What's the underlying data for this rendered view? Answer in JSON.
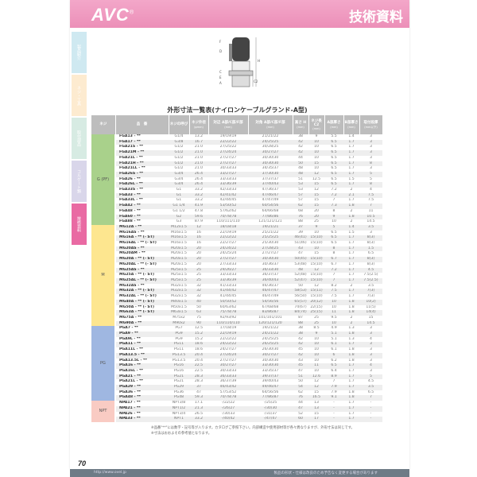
{
  "header": {
    "logo": "AVC",
    "registered": "®",
    "title": "技術資料"
  },
  "side_tabs": [
    {
      "label": "製品紹介",
      "color": "#cfe9f1"
    },
    {
      "label": "ネジ・工具",
      "color": "#fdebd0"
    },
    {
      "label": "取付部品",
      "color": "#d7ebe3"
    },
    {
      "label": "コルゲート類",
      "color": "#d9d6ea"
    },
    {
      "label": "技術資料",
      "color": "#e96aa3"
    }
  ],
  "diagram": {
    "labels": [
      "F",
      "D",
      "C",
      "E",
      "A",
      "H",
      "C2"
    ]
  },
  "table": {
    "title": "外形寸法一覧表(ナイロンケーブルグランド-A型)",
    "headers": [
      {
        "main": "ネジ",
        "unit": ""
      },
      {
        "main": "品　番",
        "unit": ""
      },
      {
        "main": "ネジの呼び",
        "unit": ""
      },
      {
        "main": "ネジ外径",
        "unit": "(φmm)"
      },
      {
        "main": "対辺 A部/C部/F部",
        "unit": "(mm)"
      },
      {
        "main": "対角 A部/C部/F部",
        "unit": "(mm)"
      },
      {
        "main": "高さ H",
        "unit": "(mm)"
      },
      {
        "main": "ネジ長 C2",
        "unit": "(mm)"
      },
      {
        "main": "A部厚さ",
        "unit": "(mm)"
      },
      {
        "main": "B部厚さ",
        "unit": "(mm)"
      },
      {
        "main": "取付段厚",
        "unit": "(mm以下)"
      }
    ],
    "groups": [
      {
        "label": "G (PF)",
        "color": "#a9d18b",
        "rows": [
          [
            "FGA13 - **",
            "G1/4",
            "13.2",
            "19/19/19",
            "21/21/22",
            "38",
            "9",
            "5.5",
            "1.4",
            "3"
          ],
          [
            "FGA17 - **",
            "G3/8",
            "16.7",
            "22/22/22",
            "24/25/25",
            "42",
            "10",
            "6.5",
            "1.7",
            "3"
          ],
          [
            "FGA21S - **",
            "G1/2",
            "21.0",
            "27/25/22",
            "30/28/25",
            "42",
            "10",
            "6.5",
            "1.7",
            "3"
          ],
          [
            "FGA21M - **",
            "G1/2",
            "21.0",
            "27/24/24",
            "30/27/27",
            "42",
            "10",
            "6.5",
            "1.7",
            "3"
          ],
          [
            "FGA21L - **",
            "G1/2",
            "21.0",
            "27/27/27",
            "30/30/30",
            "44",
            "10",
            "6.5",
            "1.7",
            "3"
          ],
          [
            "FGA21H - **",
            "G1/2",
            "21.0",
            "27/27/27",
            "30/30/30",
            "50",
            "15",
            "6.5",
            "1.7",
            "8"
          ],
          [
            "FGA21LL - **",
            "G1/2",
            "21.0",
            "30/33/33",
            "34/35/37",
            "48",
            "10",
            "6.5",
            "1.7",
            "3"
          ],
          [
            "FGA26S - **",
            "G3/4",
            "26.4",
            "33/27/27",
            "37/30/30",
            "48",
            "12",
            "6.5",
            "1.7",
            "5"
          ],
          [
            "FGA26 - **",
            "G3/4",
            "26.4",
            "33/33/33",
            "37/37/37",
            "51",
            "12.5",
            "6.5",
            "1.5",
            "5"
          ],
          [
            "FGA26L - **",
            "G3/4",
            "26.4",
            "33/36/39",
            "37/40/43",
            "53",
            "15",
            "6.5",
            "1.7",
            "8"
          ],
          [
            "FGA33S - **",
            "G1",
            "33.2",
            "42/33/33",
            "47/36/37",
            "53",
            "12",
            "7.2",
            "2",
            "4"
          ],
          [
            "FGA33 - **",
            "G1",
            "33.2",
            "42/41/42",
            "47/46/47",
            "57",
            "15",
            "7.2",
            "2.1",
            "7.5"
          ],
          [
            "FGA33L - **",
            "G1",
            "33.2",
            "42/44/45",
            "47/47/49",
            "57",
            "15",
            "7",
            "1.7",
            "7.5"
          ],
          [
            "FGA42 - **",
            "G1 1/4",
            "41.9",
            "53/50/52",
            "60/54/56",
            "62",
            "15",
            "7.3",
            "1.8",
            "7"
          ],
          [
            "FGA48 - **",
            "G1 1/2",
            "47.8",
            "57/62/62",
            "64/66/68",
            "68",
            "20",
            "8",
            "2",
            "11"
          ],
          [
            "FGA60 - **",
            "G2",
            "59.6",
            "70/78/78",
            "77/86/86",
            "76",
            "20",
            "9",
            "1.8",
            "10.5"
          ],
          [
            "FGA88 - **",
            "G3",
            "87.9",
            "110/111/110",
            "121/121/121",
            "88",
            "25",
            "10",
            "2",
            "14.5"
          ]
        ]
      },
      {
        "label": "M",
        "color": "#fde68f",
        "rows": [
          [
            "MG12A - **",
            "M12x1.5",
            "12",
            "18/18/18",
            "19/21/21",
            "37",
            "9",
            "5",
            "1.4",
            "3.5"
          ],
          [
            "MG16AS - **",
            "M16x1.5",
            "16",
            "22/19/19",
            "25/21/22",
            "39",
            "10",
            "6.5",
            "1.5",
            "3"
          ],
          [
            "MG16A - ** (- ST)",
            "M16x1.5",
            "16",
            "22/22/22",
            "25/25/25",
            "46(41)",
            "15(10)",
            "6.5",
            "1.7",
            "8(3)"
          ],
          [
            "MG16AL - ** (- ST)",
            "M16x1.5",
            "16",
            "22/27/27",
            "25/30/30",
            "51(46)",
            "15(10)",
            "6.5",
            "1.7",
            "8(3)"
          ],
          [
            "MG20AS - **",
            "M20x1.5",
            "20",
            "24/24/22",
            "27/28/25",
            "43",
            "10",
            "8",
            "1.7",
            "1.5"
          ],
          [
            "MG20AM - **",
            "M20x1.5",
            "20",
            "24/25/24",
            "27/27/27",
            "47",
            "15",
            "8",
            "1.7",
            "6.5"
          ],
          [
            "MG20A - ** (- ST)",
            "M20x1.5",
            "20",
            "27/27/27",
            "30/30/30",
            "50(45)",
            "15(10)",
            "6.7",
            "1.7",
            "8(3)"
          ],
          [
            "MG20AL - ** (- ST)",
            "M20x1.5",
            "20",
            "27/33/33",
            "30/36/37",
            "53(48)",
            "15(10)",
            "6.7",
            "1.7",
            "8(3)"
          ],
          [
            "MG25AS - **",
            "M25x1.5",
            "25",
            "29/26/27",
            "36/33/30",
            "48",
            "12",
            "7.2",
            "1.7",
            "4.5"
          ],
          [
            "MG25A - ** (- ST)",
            "M25x1.5",
            "25",
            "33/33/33",
            "36/37/37",
            "52(48)",
            "15(10)",
            "7",
            "1.7",
            "7.5(2.5)"
          ],
          [
            "MG25AL - ** (- ST)",
            "M25x1.5",
            "25",
            "33/36/39",
            "36/40/43",
            "52(47)",
            "15(10)",
            "7",
            "1.7",
            "7.5(2.5)"
          ],
          [
            "MG32AS - **",
            "M32x1.5",
            "32",
            "41/33/33",
            "46/36/37",
            "50",
            "12",
            "8.2",
            "2",
            "3.5"
          ],
          [
            "MG32A - ** (- ST)",
            "M32x1.5",
            "32",
            "41/44/42",
            "46/47/47",
            "58(53)",
            "15(11)",
            "7.5",
            "1.7",
            "7(3)"
          ],
          [
            "MG32AL - ** (- ST)",
            "M32x1.5",
            "32",
            "41/44/45",
            "46/47/49",
            "56(50)",
            "15(10)",
            "7.5",
            "1.7",
            "7(3)"
          ],
          [
            "MG40A - ** (- ST)",
            "M40x1.5",
            "40",
            "50/50/52",
            "54/56/56",
            "65(57)",
            "20(12)",
            "10",
            "1.8",
            "10(2)"
          ],
          [
            "MG50A - ** (- ST)",
            "M50x1.5",
            "50",
            "60/63/62",
            "67/68/68",
            "74(67)",
            "22(15)",
            "10",
            "1.8",
            "11(5)"
          ],
          [
            "MG63A - ** (- ST)",
            "M63x1.5",
            "63",
            "75/78/78",
            "83/86/87",
            "84(74)",
            "25(15)",
            "11",
            "1.8",
            "14(4)"
          ],
          [
            "MG75A - **",
            "M75x2",
            "75",
            "92/93/92",
            "101/101/101",
            "87",
            "25",
            "9.5",
            "2",
            "15"
          ],
          [
            "MG90A - **",
            "M90x2",
            "90",
            "110/110/110",
            "120/121/120",
            "88",
            "25",
            "10",
            "2",
            "14.5"
          ]
        ]
      },
      {
        "label": "PG",
        "color": "#9fb7e1",
        "rows": [
          [
            "PGA7 - **",
            "PG7",
            "12.5",
            "17/18/19",
            "19/21/22",
            "38",
            "8.5",
            "4.9",
            "1.3",
            "3"
          ],
          [
            "PGA9 - **",
            "PG9",
            "15.2",
            "22/19/19",
            "24/21/22",
            "38",
            "9",
            "5.1",
            "1.8",
            "3"
          ],
          [
            "PGA9L - **",
            "PG9",
            "15.2",
            "22/22/22",
            "24/25/25",
            "42",
            "10",
            "5.1",
            "1.3",
            "4"
          ],
          [
            "PGA11 - **",
            "PG11",
            "18.6",
            "24/22/22",
            "26/25/25",
            "42",
            "10",
            "6.1",
            "1.7",
            "3"
          ],
          [
            "PGA11L - **",
            "PG11",
            "18.6",
            "24/27/27",
            "26/30/30",
            "45",
            "10",
            "6.1",
            "1.8",
            "3"
          ],
          [
            "PGA13.5 - **",
            "PG13.5",
            "20.4",
            "27/24/24",
            "30/27/27",
            "42",
            "10",
            "6",
            "1.8",
            "3"
          ],
          [
            "PGA13.5L - **",
            "PG13.5",
            "20.4",
            "27/27/27",
            "30/30/30",
            "43",
            "10",
            "6.2",
            "1.8",
            "3"
          ],
          [
            "PGA16 - **",
            "PG16",
            "22.5",
            "30/27/27",
            "33/30/30",
            "45",
            "11",
            "6.5",
            "1.7",
            "4"
          ],
          [
            "PGA16L - **",
            "PG16",
            "22.5",
            "30/33/33",
            "33/35/37",
            "47",
            "10",
            "6.4",
            "1.7",
            "3"
          ],
          [
            "PGA21 - **",
            "PG21",
            "28.3",
            "36/33/33",
            "39/37/37",
            "51",
            "12.6",
            "8.9",
            "1.7",
            "5"
          ],
          [
            "PGA21L - **",
            "PG21",
            "28.3",
            "36/37/39",
            "39/40/43",
            "50",
            "12",
            "7",
            "1.7",
            "4.5"
          ],
          [
            "PGA29 - **",
            "PG29",
            "37",
            "46/43/42",
            "49/46/47",
            "54",
            "12",
            "7.9",
            "1.7",
            "3.5"
          ],
          [
            "PGA36 - **",
            "PG36",
            "47",
            "57/53/52",
            "64/56/56",
            "62",
            "15",
            "7.9",
            "1.8",
            "6.5"
          ],
          [
            "PGA48 - **",
            "PG48",
            "59.3",
            "70/78/78",
            "77/86/87",
            "76",
            "16.5",
            "9.1",
            "1.8",
            "7"
          ]
        ]
      },
      {
        "label": "NPT",
        "color": "#f9cbc3",
        "rows": [
          [
            "NPA17 - **",
            "NPT3/8",
            "17.1",
            "-/22/22",
            "-/25/25",
            "44",
            "13",
            "-",
            "1.7",
            "-"
          ],
          [
            "NPA21 - **",
            "NPT1/2",
            "21.3",
            "-/26/27",
            "-/30/30",
            "47",
            "13",
            "-",
            "1.7",
            "-"
          ],
          [
            "NPA26 - **",
            "NPT3/4",
            "26.5",
            "-/30/33",
            "-/31/37",
            "52",
            "15",
            "-",
            "1.7",
            "-"
          ],
          [
            "NPA33 - **",
            "NPT1",
            "33.2",
            "-/40/42",
            "-/47/47",
            "60",
            "17",
            "-",
            "1.7",
            "-"
          ]
        ]
      }
    ]
  },
  "notes": [
    "※品番\"**\"には数字・記号等が入ります。カタログご参照下さい。内部構造や使用部材等が各々異なりますが、外形寸法は同じです。",
    "※寸法はおおよその参考値となります。"
  ],
  "page_number": "70",
  "footer": {
    "url": "http://www.ovel.jp",
    "disclaimer": "製品の形状・仕様は改良のため予告なく変更する場合があります"
  }
}
